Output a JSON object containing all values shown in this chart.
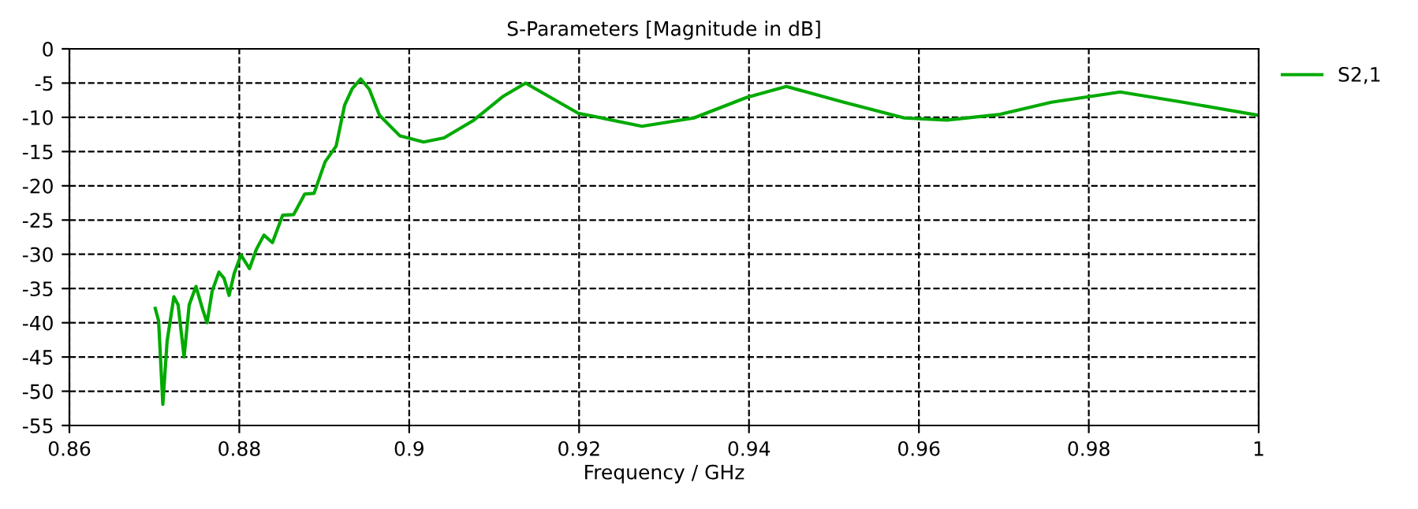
{
  "chart_data": {
    "type": "line",
    "title": "S-Parameters [Magnitude in dB]",
    "xlabel": "Frequency / GHz",
    "xlim": [
      0.86,
      1.0
    ],
    "xticks": [
      0.86,
      0.88,
      0.9,
      0.92,
      0.94,
      0.96,
      0.98,
      1
    ],
    "ylim": [
      -55,
      0
    ],
    "yticks": [
      -55,
      -50,
      -45,
      -40,
      -35,
      -30,
      -25,
      -20,
      -15,
      -10,
      -5,
      0
    ],
    "grid": true,
    "legend": "top right",
    "line_style": "solid",
    "marker": "none",
    "series": [
      {
        "name": "S2,1",
        "color": "#00aa00",
        "x": [
          0.8701,
          0.8705,
          0.871,
          0.8715,
          0.8723,
          0.8728,
          0.8735,
          0.8741,
          0.8749,
          0.8757,
          0.8762,
          0.8768,
          0.8776,
          0.8782,
          0.8788,
          0.8794,
          0.8802,
          0.8812,
          0.882,
          0.8829,
          0.8839,
          0.8851,
          0.8864,
          0.8877,
          0.8888,
          0.8901,
          0.8914,
          0.8924,
          0.8933,
          0.8943,
          0.8953,
          0.8965,
          0.8989,
          0.9017,
          0.9041,
          0.9075,
          0.9111,
          0.9137,
          0.9199,
          0.9274,
          0.9335,
          0.9397,
          0.9444,
          0.9509,
          0.9583,
          0.9633,
          0.9694,
          0.9756,
          0.9837,
          0.9911,
          1.0
        ],
        "values": [
          -37.9,
          -39.7,
          -51.9,
          -42.7,
          -36.2,
          -37.4,
          -45.0,
          -37.4,
          -34.7,
          -38.1,
          -40.0,
          -35.4,
          -32.6,
          -33.5,
          -36.0,
          -32.8,
          -30.1,
          -32.1,
          -29.3,
          -27.2,
          -28.3,
          -24.3,
          -24.2,
          -21.2,
          -21.1,
          -16.5,
          -14.2,
          -8.2,
          -5.8,
          -4.4,
          -5.9,
          -9.7,
          -12.7,
          -13.6,
          -13.0,
          -10.5,
          -6.9,
          -5.0,
          -9.4,
          -11.3,
          -10.1,
          -7.1,
          -5.5,
          -7.7,
          -10.1,
          -10.4,
          -9.6,
          -7.8,
          -6.3,
          -7.8,
          -9.7
        ]
      }
    ]
  }
}
